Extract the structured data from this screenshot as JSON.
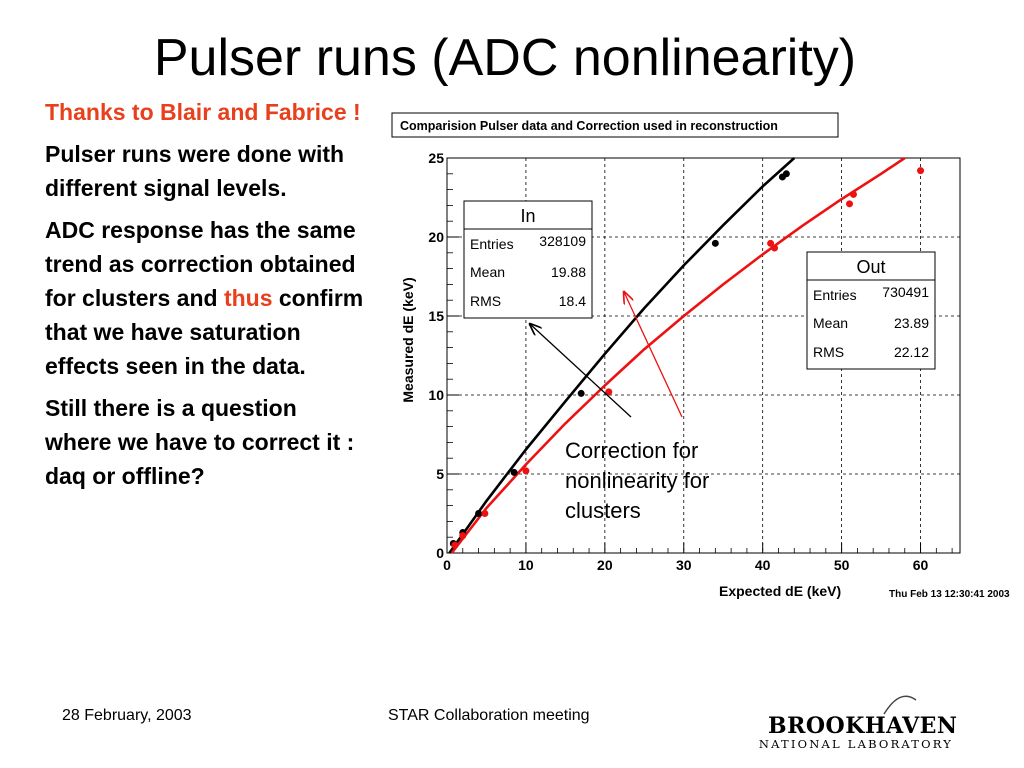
{
  "slide": {
    "title": "Pulser runs (ADC nonlinearity)",
    "thanks": "Thanks to Blair and Fabrice !",
    "para1": "Pulser runs were done with different signal levels.",
    "para2_a": "ADC response has the same trend as correction obtained for clusters and ",
    "para2_highlight": "thus",
    "para2_b": " confirm that we have saturation effects seen in the data.",
    "para3": "Still there is a question where we have to correct it : daq or offline?",
    "annotation": "Correction for nonlinearity for clusters",
    "footer_date": "28 February, 2003",
    "footer_center": "STAR Collaboration  meeting",
    "logo_main": "BROOKHAVEN",
    "logo_sub": "NATIONAL LABORATORY"
  },
  "chart_data": {
    "type": "scatter",
    "title": "Comparision Pulser data and Correction used in reconstruction",
    "xlabel": "Expected dE (keV)",
    "ylabel": "Measured dE (keV)",
    "xlim": [
      0,
      65
    ],
    "ylim": [
      0,
      25
    ],
    "xticks": [
      "0",
      "10",
      "20",
      "30",
      "40",
      "50",
      "60"
    ],
    "yticks": [
      "0",
      "5",
      "10",
      "15",
      "20",
      "25"
    ],
    "grid": true,
    "timestamp": "Thu Feb 13 12:30:41 2003",
    "colors": {
      "in": "#000000",
      "out": "#ee1111"
    },
    "stat_boxes": [
      {
        "name": "In",
        "rows": [
          {
            "label": "Entries",
            "value": "328109"
          },
          {
            "label": "Mean",
            "value": "19.88"
          },
          {
            "label": "RMS",
            "value": "18.4"
          }
        ]
      },
      {
        "name": "Out",
        "rows": [
          {
            "label": "Entries",
            "value": "730491"
          },
          {
            "label": "Mean",
            "value": "23.89"
          },
          {
            "label": "RMS",
            "value": "22.12"
          }
        ]
      }
    ],
    "series": [
      {
        "name": "In",
        "kind": "points",
        "color": "#000000",
        "x": [
          0.8,
          2.0,
          4.0,
          8.5,
          17.0,
          34.0,
          42.5,
          43.0
        ],
        "y": [
          0.6,
          1.3,
          2.5,
          5.1,
          10.1,
          19.6,
          23.8,
          24.0
        ]
      },
      {
        "name": "In",
        "kind": "curve",
        "color": "#000000",
        "x": [
          0.3,
          5,
          10,
          15,
          20,
          25,
          30,
          35,
          40,
          44
        ],
        "y": [
          0.0,
          3.3,
          6.55,
          9.6,
          12.6,
          15.5,
          18.2,
          20.75,
          23.2,
          25.0
        ]
      },
      {
        "name": "Out",
        "kind": "points",
        "color": "#ee1111",
        "x": [
          1.0,
          2.0,
          4.8,
          10.0,
          20.5,
          41.0,
          41.5,
          51.0,
          51.5,
          60.0
        ],
        "y": [
          0.5,
          1.1,
          2.5,
          5.2,
          10.2,
          19.6,
          19.3,
          22.1,
          22.7,
          24.2
        ]
      },
      {
        "name": "Out",
        "kind": "curve",
        "color": "#ee1111",
        "x": [
          0.6,
          5,
          10,
          15,
          20,
          25,
          30,
          35,
          40,
          45,
          50,
          55,
          58
        ],
        "y": [
          0.0,
          2.85,
          5.6,
          8.2,
          10.6,
          12.9,
          15.0,
          17.0,
          18.9,
          20.7,
          22.4,
          24.0,
          25.0
        ]
      }
    ]
  }
}
